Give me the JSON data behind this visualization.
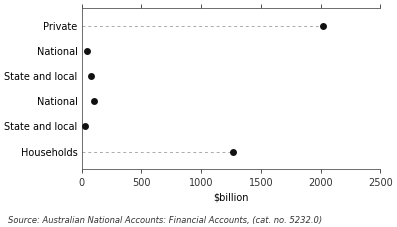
{
  "categories": [
    "Private",
    "National",
    "State and local",
    "National",
    "State and local",
    "Households"
  ],
  "values": [
    2020,
    45,
    80,
    100,
    25,
    1270
  ],
  "has_dashed": [
    true,
    false,
    false,
    false,
    false,
    true
  ],
  "xlim": [
    0,
    2500
  ],
  "xticks": [
    0,
    500,
    1000,
    1500,
    2000,
    2500
  ],
  "xlabel": "$billion",
  "source": "Source: Australian National Accounts: Financial Accounts, (cat. no. 5232.0)",
  "dot_color": "#111111",
  "dashed_color": "#aaaaaa",
  "bg_color": "#ffffff",
  "marker_size": 5,
  "tick_fontsize": 7,
  "label_fontsize": 7,
  "source_fontsize": 6
}
